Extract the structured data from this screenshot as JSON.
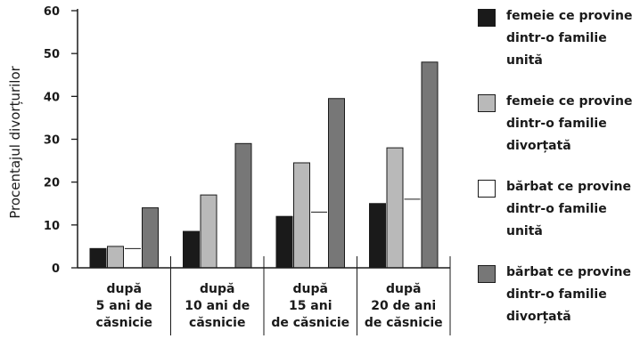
{
  "chart_data": {
    "type": "bar",
    "title": "",
    "xlabel": "",
    "ylabel": "Procentajul divorțurilor",
    "ylim": [
      0,
      60
    ],
    "yticks": [
      "0",
      "10",
      "20",
      "30",
      "40",
      "50",
      "60"
    ],
    "grid": false,
    "legend_position": "right",
    "categories": [
      "după\n5 ani de\ncăsnicie",
      "după\n10 ani de\ncăsnicie",
      "după\n15 ani\nde căsnicie",
      "după\n20 de ani\nde căsnicie"
    ],
    "series": [
      {
        "name": "femeie ce provine\ndintr-o familie\nunită",
        "color": "#1a1a1a",
        "values": [
          4.5,
          8.5,
          12,
          15
        ]
      },
      {
        "name": "femeie ce provine\ndintr-o familie\ndivorțată",
        "color": "#b9b9b9",
        "values": [
          5,
          17,
          24.5,
          28
        ]
      },
      {
        "name": "bărbat ce provine\ndintr-o familie\nunită",
        "color": "#ffffff",
        "values": [
          4.5,
          0,
          13,
          16
        ]
      },
      {
        "name": "bărbat ce provine\ndintr-o familie\ndivorțată",
        "color": "#777777",
        "values": [
          14,
          29,
          39.5,
          48
        ]
      }
    ]
  }
}
